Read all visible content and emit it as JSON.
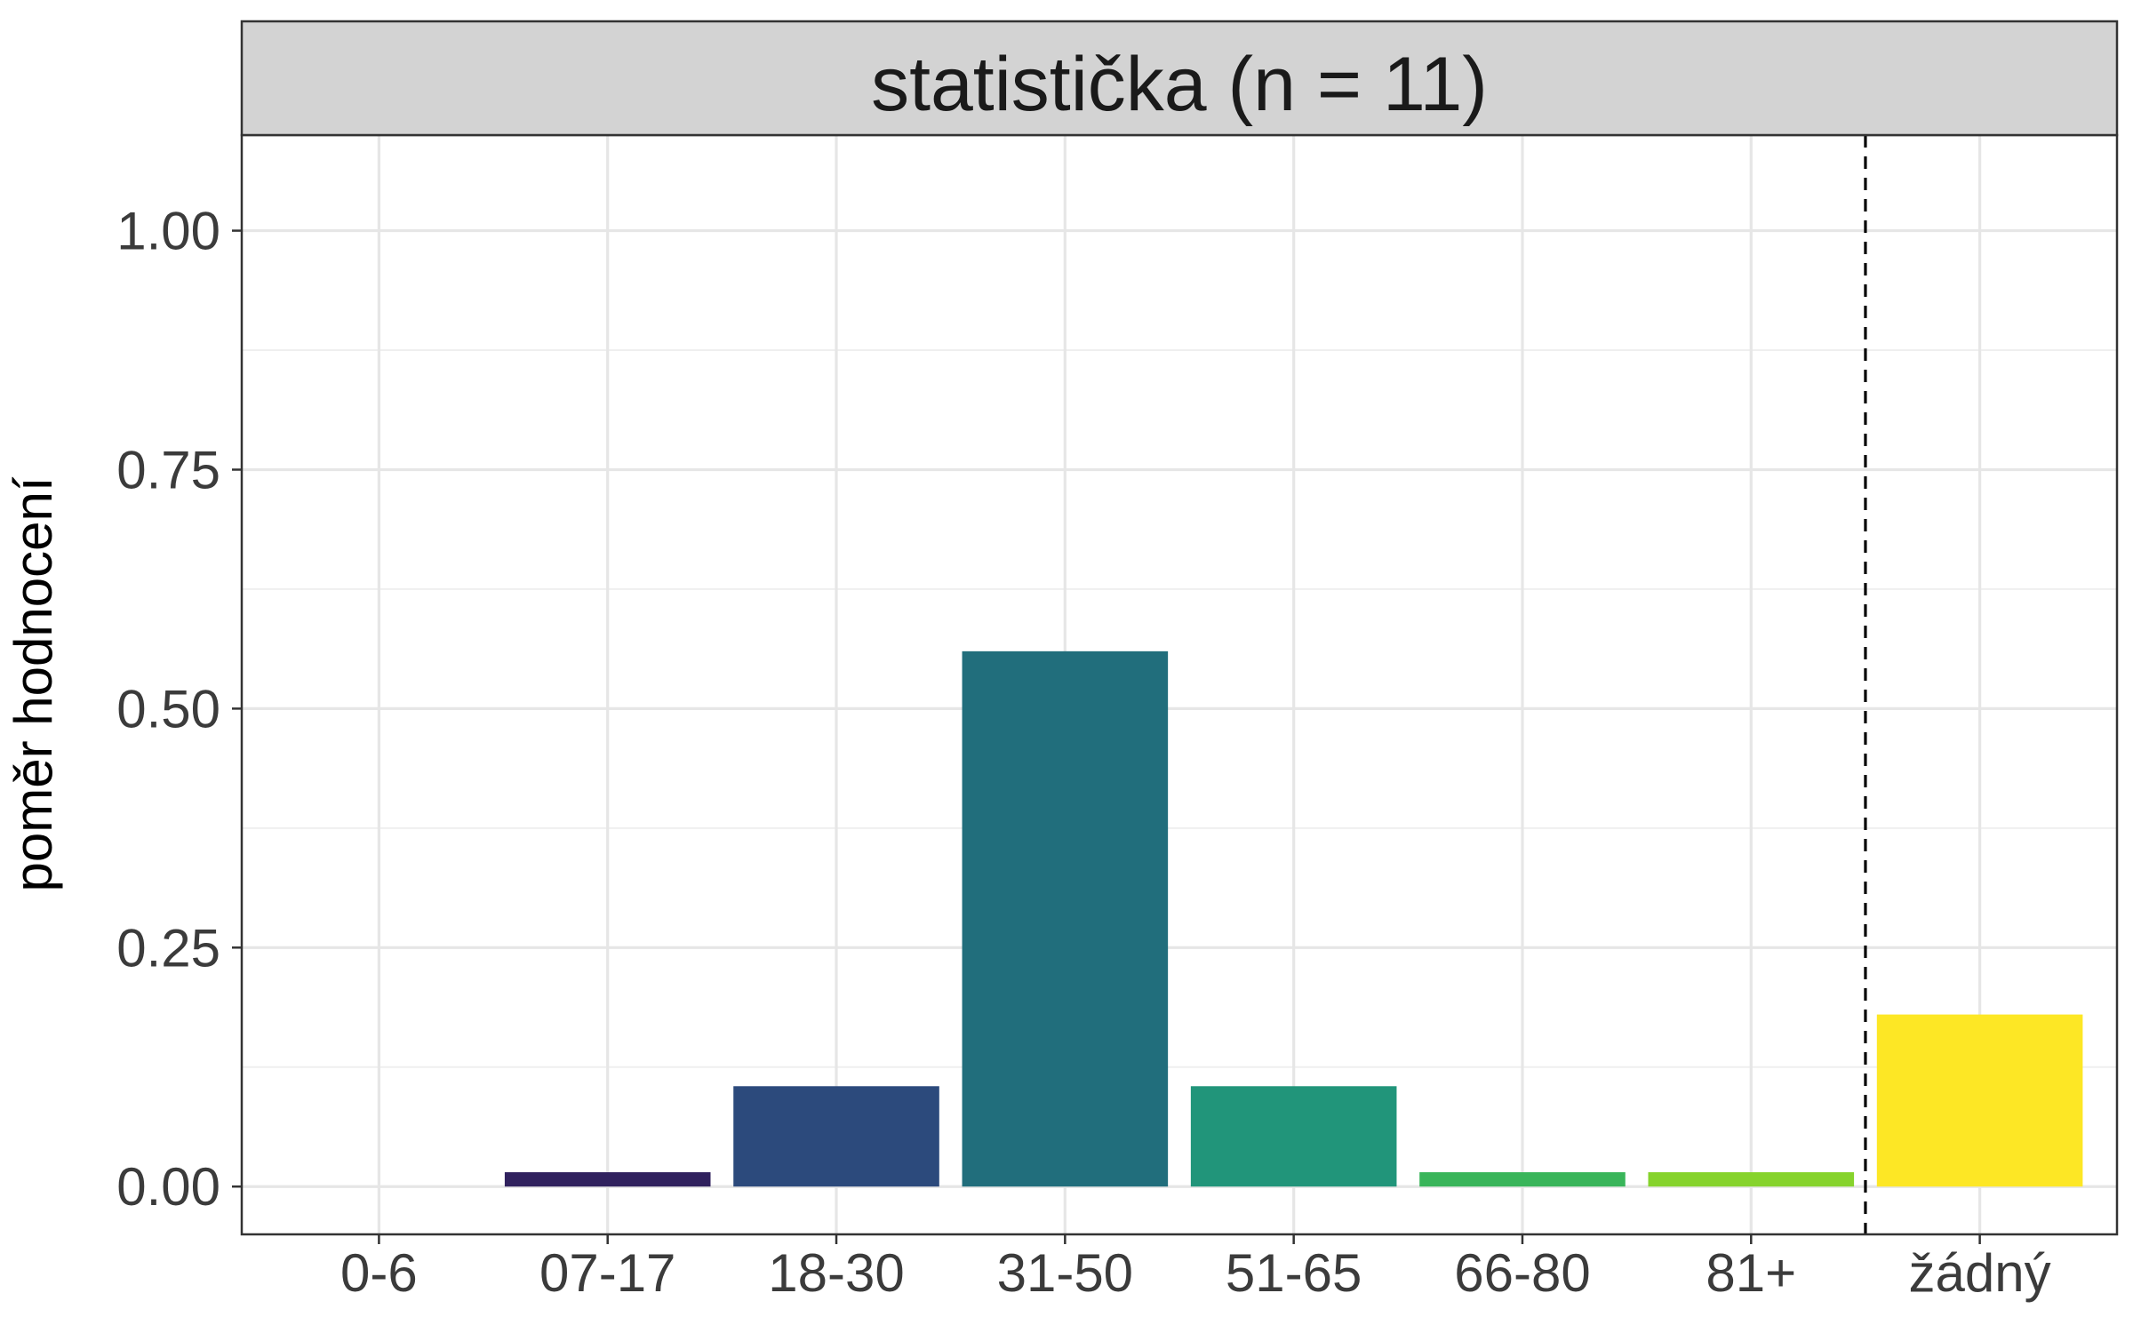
{
  "chart_data": {
    "type": "bar",
    "facet_title": "statistička (n = 11)",
    "ylabel": "poměr hodnocení",
    "xlabel": "",
    "categories": [
      "0-6",
      "07-17",
      "18-30",
      "31-50",
      "51-65",
      "66-80",
      "81+",
      "žádný"
    ],
    "values": [
      0.0,
      0.015,
      0.105,
      0.56,
      0.105,
      0.015,
      0.015,
      0.18
    ],
    "bar_colors": [
      "#440154",
      "#30215E",
      "#2C4A7C",
      "#216E7C",
      "#21957A",
      "#39B55A",
      "#86D32C",
      "#FDE725"
    ],
    "ylim": [
      -0.05,
      1.1
    ],
    "y_ticks": [
      "0.00",
      "0.25",
      "0.50",
      "0.75",
      "1.00"
    ],
    "y_tick_values": [
      0,
      0.25,
      0.5,
      0.75,
      1.0
    ],
    "reference_line": {
      "between": [
        "81+",
        "žádný"
      ],
      "style": "dashed"
    },
    "grid": true,
    "legend": "none",
    "panel_strip_color": "#D3D3D3"
  }
}
